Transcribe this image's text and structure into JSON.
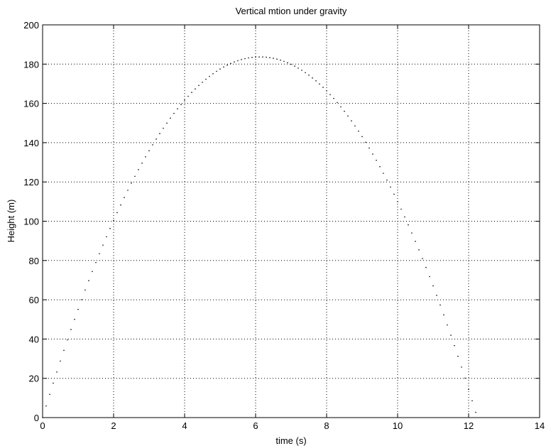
{
  "chart_data": {
    "type": "scatter",
    "title": "Vertical mtion under gravity",
    "xlabel": "time (s)",
    "ylabel": "Height (m)",
    "xlim": [
      0,
      14
    ],
    "ylim": [
      0,
      200
    ],
    "grid": true,
    "x_ticks": [
      0,
      2,
      4,
      6,
      8,
      10,
      12,
      14
    ],
    "y_ticks": [
      0,
      20,
      40,
      60,
      80,
      100,
      120,
      140,
      160,
      180,
      200
    ],
    "marker_color": "#000000",
    "series": [
      {
        "model": "quadratic",
        "initial_velocity": 60,
        "gravity": 9.8,
        "t_start": 0,
        "t_end": 12.24,
        "t_step": 0.1
      }
    ]
  }
}
